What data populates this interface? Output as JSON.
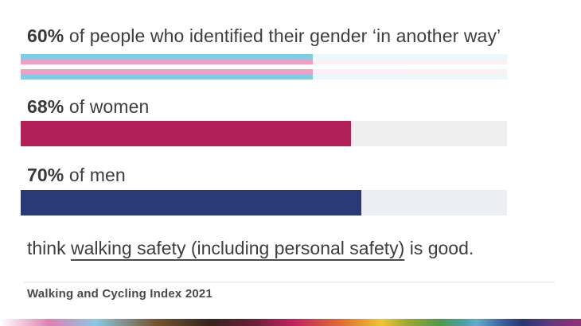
{
  "colors": {
    "text": "#3e3e3e",
    "footer_text": "#4a4a4a",
    "women_fill": "#b01f56",
    "women_track": "#efefef",
    "men_fill": "#2a3a76",
    "men_track": "#edeef4",
    "trans_flag": {
      "blue": "#7cCee6",
      "pink": "#f09fc3",
      "white": "#ffffff"
    },
    "divider": "#f1f1f1",
    "rainbow_stops": [
      "#ffffff 0%",
      "#e07fb4 8.5%",
      "#8ac9e2 16.4%",
      "#75552f 26.7%",
      "#36251c 36%",
      "#6e1f38 44%",
      "#c12061 50.4%",
      "#e2702b 59%",
      "#efc433 65.7%",
      "#9fa833 70%",
      "#4e9b45 75.6%",
      "#47a3ac 80%",
      "#5faecb 82%",
      "#3a5c9e 86.6%",
      "#28376f 90%",
      "#5c3a7e 94.5%",
      "#8e3078 99%"
    ]
  },
  "rows": [
    {
      "percent": "60%",
      "label": " of people who identified their gender ‘in another way’",
      "fill": "trans-flag"
    },
    {
      "percent": "68%",
      "label": " of women",
      "fill": "magenta"
    },
    {
      "percent": "70%",
      "label": " of men",
      "fill": "navy"
    }
  ],
  "statement": {
    "prefix": "think ",
    "underlined": "walking safety (including personal safety)",
    "suffix": " is good."
  },
  "footer": {
    "source": "Walking and Cycling Index 2021"
  },
  "chart_data": {
    "type": "bar",
    "orientation": "horizontal",
    "categories": [
      "people who identified their gender 'in another way'",
      "women",
      "men"
    ],
    "values": [
      60,
      68,
      70
    ],
    "unit": "%",
    "statement": "think walking safety (including personal safety) is good.",
    "source": "Walking and Cycling Index 2021",
    "xlim": [
      0,
      100
    ],
    "grid": false,
    "legend": false
  }
}
